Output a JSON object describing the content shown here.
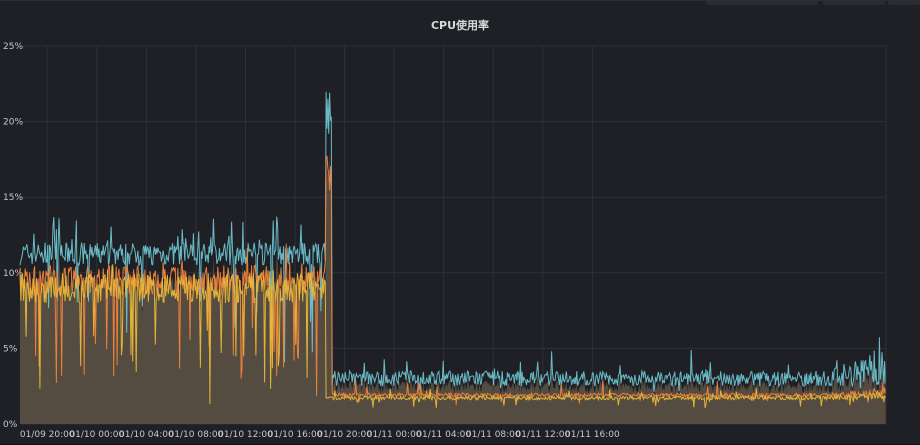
{
  "panel": {
    "title": "CPU使用率"
  },
  "chart_data": {
    "type": "area",
    "title": "CPU使用率",
    "xlabel": "",
    "ylabel": "",
    "y_ticks": [
      "0%",
      "5%",
      "10%",
      "15%",
      "20%",
      "25%"
    ],
    "ylim": [
      0,
      25
    ],
    "x_ticks": [
      "01/09 20:00",
      "01/10 00:00",
      "01/10 04:00",
      "01/10 08:00",
      "01/10 12:00",
      "01/10 16:00",
      "01/10 20:00",
      "01/11 00:00",
      "01/11 04:00",
      "01/11 08:00",
      "01/11 12:00",
      "01/11 16:00"
    ],
    "x_range_hours": [
      -2.2,
      67.7
    ],
    "grid": true,
    "legend": "none",
    "series": [
      {
        "color": "#6ec3cf",
        "segments": [
          {
            "x_hours": [
              -2.2,
              22.5
            ],
            "approx_value_pct": [
              10.5,
              12.0
            ],
            "peak_pct": 14.0
          },
          {
            "x_hours": [
              22.5,
              22.8
            ],
            "peak_pct": 22.0
          },
          {
            "x_hours": [
              23.0,
              67.7
            ],
            "approx_value_pct": [
              2.5,
              4.2
            ],
            "peak_pct": 5.8
          }
        ]
      },
      {
        "color": "#ef843c",
        "segments": [
          {
            "x_hours": [
              -2.2,
              22.5
            ],
            "approx_value_pct": [
              8.5,
              10.5
            ],
            "peak_pct": 12.0
          },
          {
            "x_hours": [
              22.5,
              22.8
            ],
            "peak_pct": 18.0
          },
          {
            "x_hours": [
              23.0,
              67.7
            ],
            "approx_value_pct": [
              1.8,
              2.2
            ],
            "peak_pct": 3.2
          }
        ]
      },
      {
        "color": "#eab839",
        "segments": [
          {
            "x_hours": [
              -2.2,
              22.5
            ],
            "approx_value_pct": [
              8.0,
              10.0
            ],
            "peak_pct": 11.0
          },
          {
            "x_hours": [
              23.0,
              67.7
            ],
            "approx_value_pct": [
              1.6,
              2.0
            ],
            "peak_pct": 2.6
          }
        ]
      }
    ],
    "fill_color": "#5e5446"
  }
}
